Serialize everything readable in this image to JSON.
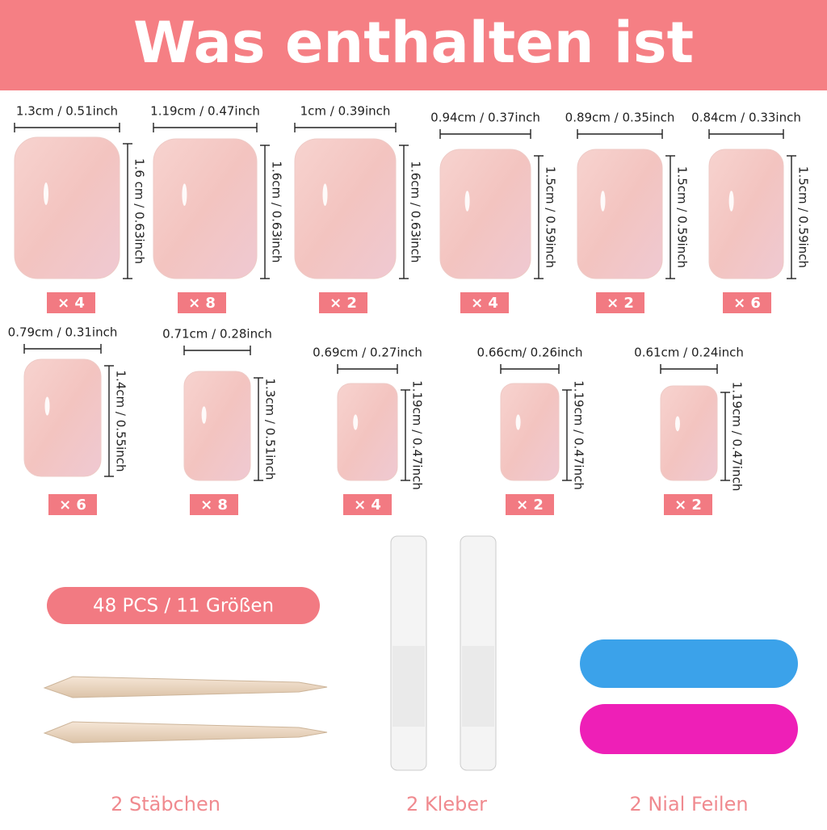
{
  "title": "Was enthalten ist",
  "nails": [
    {
      "width": "1.3cm / 0.51inch",
      "height": "1.6 cm / 0.63inch",
      "count": "× 4"
    },
    {
      "width": "1.19cm / 0.47inch",
      "height": "1.6cm / 0.63inch",
      "count": "× 8"
    },
    {
      "width": "1cm / 0.39inch",
      "height": "1.6cm / 0.63inch",
      "count": "× 2"
    },
    {
      "width": "0.94cm / 0.37inch",
      "height": "1.5cm / 0.59inch",
      "count": "× 4"
    },
    {
      "width": "0.89cm / 0.35inch",
      "height": "1.5cm / 0.59inch",
      "count": "× 2"
    },
    {
      "width": "0.84cm / 0.33inch",
      "height": "1.5cm / 0.59inch",
      "count": "× 6"
    },
    {
      "width": "0.79cm / 0.31inch",
      "height": "1.4cm / 0.55inch",
      "count": "× 6"
    },
    {
      "width": "0.71cm / 0.28inch",
      "height": "1.3cm / 0.51inch",
      "count": "× 8"
    },
    {
      "width": "0.69cm / 0.27inch",
      "height": "1.19cm / 0.47inch",
      "count": "× 4"
    },
    {
      "width": "0.66cm/ 0.26inch",
      "height": "1.19cm / 0.47inch",
      "count": "× 2"
    },
    {
      "width": "0.61cm / 0.24inch",
      "height": "1.19cm / 0.47inch",
      "count": "× 2"
    }
  ],
  "summary": "48 PCS / 11 Größen",
  "items": [
    "2 Stäbchen",
    "2 Kleber",
    "2 Nial Feilen"
  ]
}
